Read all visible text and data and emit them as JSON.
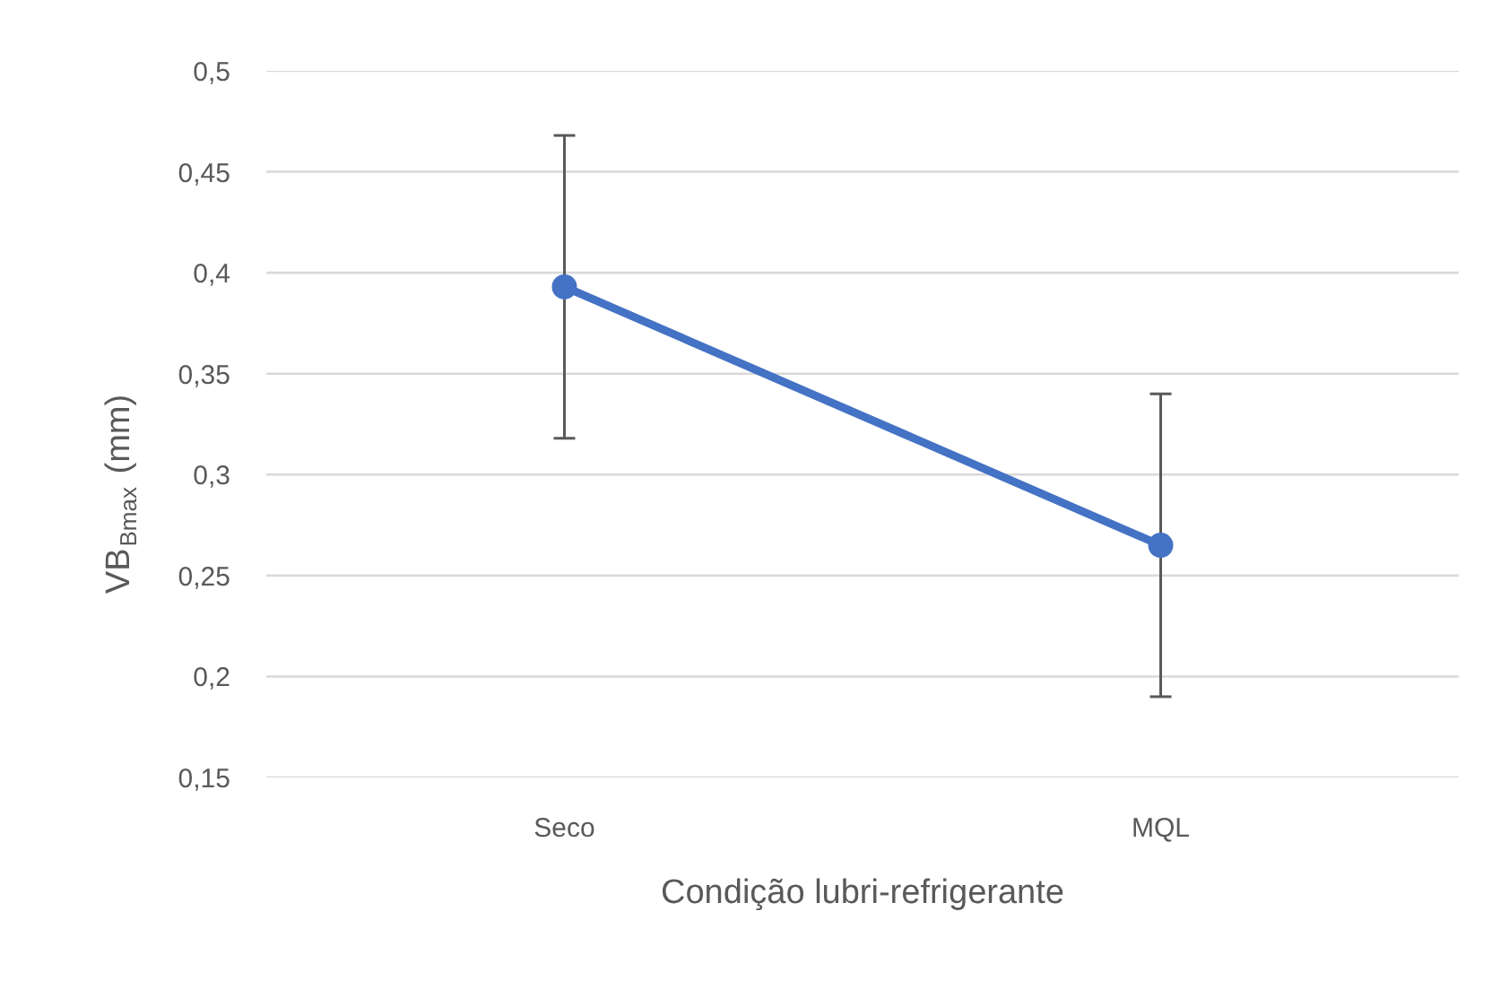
{
  "chart_data": {
    "type": "line",
    "xlabel": "Condição lubri-refrigerante",
    "ylabel": "VB$_{Bmax}$ (mm)",
    "categories": [
      "Seco",
      "MQL"
    ],
    "series": [
      {
        "color": "#4472c4",
        "values": [
          0.393,
          0.265
        ],
        "errors": [
          0.075,
          0.075
        ]
      }
    ],
    "ylim": [
      0.15,
      0.5
    ],
    "yticks": [
      {
        "value": 0.15,
        "label": "0,15"
      },
      {
        "value": 0.2,
        "label": "0,2"
      },
      {
        "value": 0.25,
        "label": "0,25"
      },
      {
        "value": 0.3,
        "label": "0,3"
      },
      {
        "value": 0.35,
        "label": "0,35"
      },
      {
        "value": 0.4,
        "label": "0,4"
      },
      {
        "value": 0.45,
        "label": "0,45"
      },
      {
        "value": 0.5,
        "label": "0,5"
      }
    ],
    "grid": "y",
    "marker": "circle",
    "line_style": "solid"
  }
}
